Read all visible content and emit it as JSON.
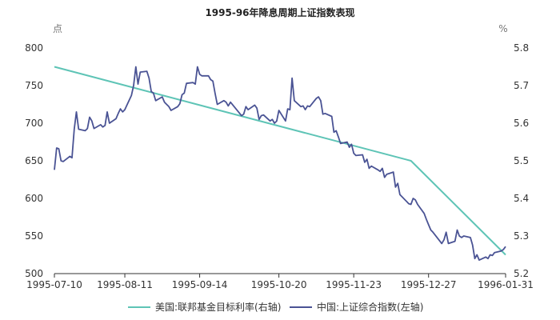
{
  "chart_data": {
    "type": "line",
    "title": "1995-96年降息周期上证指数表现",
    "left_unit": "点",
    "right_unit": "%",
    "x_ticks": [
      "1995-07-10",
      "1995-08-11",
      "1995-09-14",
      "1995-10-20",
      "1995-11-23",
      "1995-12-27",
      "1996-01-31"
    ],
    "y_left": {
      "min": 500,
      "max": 800,
      "ticks": [
        "500",
        "550",
        "600",
        "650",
        "700",
        "750",
        "800"
      ]
    },
    "y_right": {
      "min": 5.2,
      "max": 5.8,
      "ticks": [
        "5.2",
        "5.3",
        "5.4",
        "5.5",
        "5.6",
        "5.7",
        "5.8"
      ]
    },
    "grid": false,
    "legend_position": "bottom",
    "colors": {
      "fed_rate": "#5ec4b6",
      "shanghai": "#4a5394",
      "axis": "#333333"
    },
    "series": [
      {
        "name": "美国:联邦基金目标利率(右轴)",
        "axis": "right",
        "points": [
          [
            "1995-07-10",
            5.75
          ],
          [
            "1995-12-19",
            5.5
          ],
          [
            "1996-01-31",
            5.25
          ]
        ]
      },
      {
        "name": "中国:上证综合指数(左轴)",
        "axis": "left",
        "points": [
          [
            "1995-07-10",
            638
          ],
          [
            "1995-07-11",
            667
          ],
          [
            "1995-07-12",
            666
          ],
          [
            "1995-07-13",
            650
          ],
          [
            "1995-07-14",
            649
          ],
          [
            "1995-07-17",
            656
          ],
          [
            "1995-07-18",
            654
          ],
          [
            "1995-07-19",
            692
          ],
          [
            "1995-07-20",
            715
          ],
          [
            "1995-07-21",
            692
          ],
          [
            "1995-07-24",
            690
          ],
          [
            "1995-07-25",
            693
          ],
          [
            "1995-07-26",
            708
          ],
          [
            "1995-07-27",
            703
          ],
          [
            "1995-07-28",
            693
          ],
          [
            "1995-07-31",
            698
          ],
          [
            "1995-08-01",
            695
          ],
          [
            "1995-08-02",
            697
          ],
          [
            "1995-08-03",
            715
          ],
          [
            "1995-08-04",
            700
          ],
          [
            "1995-08-07",
            706
          ],
          [
            "1995-08-08",
            713
          ],
          [
            "1995-08-09",
            719
          ],
          [
            "1995-08-10",
            715
          ],
          [
            "1995-08-11",
            718
          ],
          [
            "1995-08-14",
            737
          ],
          [
            "1995-08-15",
            750
          ],
          [
            "1995-08-16",
            775
          ],
          [
            "1995-08-17",
            752
          ],
          [
            "1995-08-18",
            768
          ],
          [
            "1995-08-21",
            769
          ],
          [
            "1995-08-22",
            760
          ],
          [
            "1995-08-23",
            742
          ],
          [
            "1995-08-24",
            740
          ],
          [
            "1995-08-25",
            730
          ],
          [
            "1995-08-28",
            735
          ],
          [
            "1995-08-29",
            728
          ],
          [
            "1995-08-30",
            725
          ],
          [
            "1995-08-31",
            722
          ],
          [
            "1995-09-01",
            717
          ],
          [
            "1995-09-04",
            722
          ],
          [
            "1995-09-05",
            726
          ],
          [
            "1995-09-06",
            738
          ],
          [
            "1995-09-07",
            740
          ],
          [
            "1995-09-08",
            753
          ],
          [
            "1995-09-11",
            754
          ],
          [
            "1995-09-12",
            752
          ],
          [
            "1995-09-13",
            775
          ],
          [
            "1995-09-14",
            765
          ],
          [
            "1995-09-15",
            763
          ],
          [
            "1995-09-18",
            763
          ],
          [
            "1995-09-19",
            758
          ],
          [
            "1995-09-20",
            756
          ],
          [
            "1995-09-21",
            740
          ],
          [
            "1995-09-22",
            725
          ],
          [
            "1995-09-25",
            730
          ],
          [
            "1995-09-26",
            728
          ],
          [
            "1995-09-27",
            723
          ],
          [
            "1995-09-28",
            728
          ],
          [
            "1995-10-03",
            710
          ],
          [
            "1995-10-04",
            712
          ],
          [
            "1995-10-05",
            722
          ],
          [
            "1995-10-06",
            718
          ],
          [
            "1995-10-09",
            724
          ],
          [
            "1995-10-10",
            720
          ],
          [
            "1995-10-11",
            705
          ],
          [
            "1995-10-12",
            710
          ],
          [
            "1995-10-13",
            711
          ],
          [
            "1995-10-16",
            703
          ],
          [
            "1995-10-17",
            705
          ],
          [
            "1995-10-18",
            700
          ],
          [
            "1995-10-19",
            703
          ],
          [
            "1995-10-20",
            717
          ],
          [
            "1995-10-23",
            703
          ],
          [
            "1995-10-24",
            719
          ],
          [
            "1995-10-25",
            718
          ],
          [
            "1995-10-26",
            760
          ],
          [
            "1995-10-27",
            730
          ],
          [
            "1995-10-30",
            722
          ],
          [
            "1995-10-31",
            723
          ],
          [
            "1995-11-01",
            718
          ],
          [
            "1995-11-02",
            723
          ],
          [
            "1995-11-03",
            722
          ],
          [
            "1995-11-06",
            733
          ],
          [
            "1995-11-07",
            735
          ],
          [
            "1995-11-08",
            730
          ],
          [
            "1995-11-09",
            712
          ],
          [
            "1995-11-10",
            713
          ],
          [
            "1995-11-13",
            709
          ],
          [
            "1995-11-14",
            688
          ],
          [
            "1995-11-15",
            690
          ],
          [
            "1995-11-16",
            682
          ],
          [
            "1995-11-17",
            673
          ],
          [
            "1995-11-20",
            675
          ],
          [
            "1995-11-21",
            668
          ],
          [
            "1995-11-22",
            672
          ],
          [
            "1995-11-23",
            660
          ],
          [
            "1995-11-24",
            657
          ],
          [
            "1995-11-27",
            658
          ],
          [
            "1995-11-28",
            648
          ],
          [
            "1995-11-29",
            652
          ],
          [
            "1995-11-30",
            640
          ],
          [
            "1995-12-01",
            643
          ],
          [
            "1995-12-04",
            638
          ],
          [
            "1995-12-05",
            636
          ],
          [
            "1995-12-06",
            640
          ],
          [
            "1995-12-07",
            628
          ],
          [
            "1995-12-08",
            632
          ],
          [
            "1995-12-11",
            635
          ],
          [
            "1995-12-12",
            615
          ],
          [
            "1995-12-13",
            620
          ],
          [
            "1995-12-14",
            605
          ],
          [
            "1995-12-15",
            602
          ],
          [
            "1995-12-18",
            593
          ],
          [
            "1995-12-19",
            592
          ],
          [
            "1995-12-20",
            600
          ],
          [
            "1995-12-21",
            598
          ],
          [
            "1995-12-22",
            592
          ],
          [
            "1995-12-25",
            580
          ],
          [
            "1995-12-26",
            572
          ],
          [
            "1995-12-27",
            565
          ],
          [
            "1995-12-28",
            558
          ],
          [
            "1995-12-29",
            555
          ],
          [
            "1996-01-02",
            540
          ],
          [
            "1996-01-03",
            545
          ],
          [
            "1996-01-04",
            555
          ],
          [
            "1996-01-05",
            540
          ],
          [
            "1996-01-08",
            543
          ],
          [
            "1996-01-09",
            558
          ],
          [
            "1996-01-10",
            550
          ],
          [
            "1996-01-11",
            548
          ],
          [
            "1996-01-12",
            550
          ],
          [
            "1996-01-15",
            548
          ],
          [
            "1996-01-16",
            538
          ],
          [
            "1996-01-17",
            520
          ],
          [
            "1996-01-18",
            525
          ],
          [
            "1996-01-19",
            518
          ],
          [
            "1996-01-22",
            522
          ],
          [
            "1996-01-23",
            520
          ],
          [
            "1996-01-24",
            525
          ],
          [
            "1996-01-25",
            524
          ],
          [
            "1996-01-26",
            528
          ],
          [
            "1996-01-29",
            530
          ],
          [
            "1996-01-30",
            532
          ],
          [
            "1996-01-31",
            536
          ]
        ]
      }
    ]
  }
}
